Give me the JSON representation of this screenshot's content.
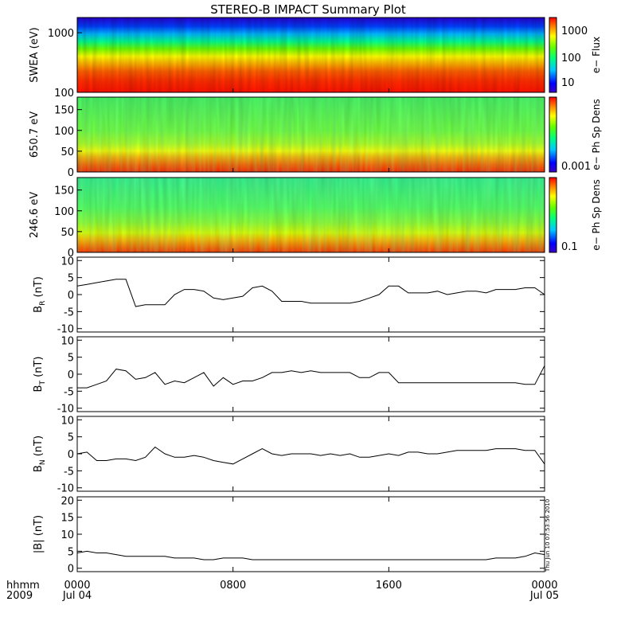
{
  "chart_data": {
    "title": "STEREO-B IMPACT Summary Plot",
    "type": "line",
    "time_axis": {
      "row1_labels": [
        "0000",
        "0800",
        "1600",
        "0000"
      ],
      "row2_labels": [
        "Jul 04",
        "",
        "",
        "Jul 05"
      ],
      "hours": [
        0,
        8,
        16,
        24
      ],
      "left_label_1": "hhmm",
      "left_label_2": "2009"
    },
    "footer_stamp": "Thu Jun 10 07:53:56 2010",
    "spectrograms": [
      {
        "name": "swea",
        "ylabel": "SWEA (eV)",
        "ylim": [
          100,
          1800
        ],
        "yscale": "log",
        "yticks": [
          100,
          1000
        ],
        "ytick_labels": [
          "100",
          "1000"
        ],
        "colorbar_label": "e− Flux",
        "colorbar_ticks": [
          "1000",
          "100",
          "10"
        ]
      },
      {
        "name": "pad650",
        "ylabel": "650.7 eV",
        "ylim": [
          0,
          180
        ],
        "yscale": "linear",
        "yticks": [
          0,
          50,
          100,
          150
        ],
        "ytick_labels": [
          "0",
          "50",
          "100",
          "150"
        ],
        "colorbar_label": "e− Ph Sp Dens",
        "colorbar_ticks": [
          "0.001"
        ]
      },
      {
        "name": "pad246",
        "ylabel": "246.6 eV",
        "ylim": [
          0,
          180
        ],
        "yscale": "linear",
        "yticks": [
          0,
          50,
          100,
          150
        ],
        "ytick_labels": [
          "0",
          "50",
          "100",
          "150"
        ],
        "colorbar_label": "e− Ph Sp Dens",
        "colorbar_ticks": [
          "0.1"
        ]
      }
    ],
    "series": [
      {
        "name": "BR",
        "ylabel_base": "B",
        "ylabel_sub": "R",
        "ylabel_unit": "(nT)",
        "ylim": [
          -11,
          11
        ],
        "yticks": [
          -10,
          -5,
          0,
          5,
          10
        ],
        "x": [
          0,
          0.5,
          1,
          1.5,
          2,
          2.5,
          3,
          3.5,
          4,
          4.5,
          5,
          5.5,
          6,
          6.5,
          7,
          7.5,
          8,
          8.5,
          9,
          9.5,
          10,
          10.5,
          11,
          11.5,
          12,
          12.5,
          13,
          13.5,
          14,
          14.5,
          15,
          15.5,
          16,
          16.5,
          17,
          17.5,
          18,
          18.5,
          19,
          19.5,
          20,
          20.5,
          21,
          21.5,
          22,
          22.5,
          23,
          23.5,
          24
        ],
        "values": [
          2.5,
          3,
          3.5,
          4,
          4.5,
          4.5,
          -3.5,
          -3,
          -3,
          -3,
          0,
          1.5,
          1.5,
          1,
          -1,
          -1.5,
          -1,
          -0.5,
          2,
          2.5,
          1,
          -2,
          -2,
          -2,
          -2.5,
          -2.5,
          -2.5,
          -2.5,
          -2.5,
          -2,
          -1,
          0,
          2.5,
          2.5,
          0.5,
          0.5,
          0.5,
          1,
          0,
          0.5,
          1,
          1,
          0.5,
          1.5,
          1.5,
          1.5,
          2,
          2,
          0
        ]
      },
      {
        "name": "BT",
        "ylabel_base": "B",
        "ylabel_sub": "T",
        "ylabel_unit": "(nT)",
        "ylim": [
          -11,
          11
        ],
        "yticks": [
          -10,
          -5,
          0,
          5,
          10
        ],
        "x": [
          0,
          0.5,
          1,
          1.5,
          2,
          2.5,
          3,
          3.5,
          4,
          4.5,
          5,
          5.5,
          6,
          6.5,
          7,
          7.5,
          8,
          8.5,
          9,
          9.5,
          10,
          10.5,
          11,
          11.5,
          12,
          12.5,
          13,
          13.5,
          14,
          14.5,
          15,
          15.5,
          16,
          16.5,
          17,
          17.5,
          18,
          18.5,
          19,
          19.5,
          20,
          20.5,
          21,
          21.5,
          22,
          22.5,
          23,
          23.5,
          24
        ],
        "values": [
          -4,
          -4,
          -3,
          -2,
          1.5,
          1,
          -1.5,
          -1,
          0.5,
          -3,
          -2,
          -2.5,
          -1,
          0.5,
          -3.5,
          -1,
          -3,
          -2,
          -2,
          -1,
          0.5,
          0.5,
          1,
          0.5,
          1,
          0.5,
          0.5,
          0.5,
          0.5,
          -1,
          -1,
          0.5,
          0.5,
          -2.5,
          -2.5,
          -2.5,
          -2.5,
          -2.5,
          -2.5,
          -2.5,
          -2.5,
          -2.5,
          -2.5,
          -2.5,
          -2.5,
          -2.5,
          -3,
          -3,
          2.5
        ]
      },
      {
        "name": "BN",
        "ylabel_base": "B",
        "ylabel_sub": "N",
        "ylabel_unit": "(nT)",
        "ylim": [
          -11,
          11
        ],
        "yticks": [
          -10,
          -5,
          0,
          5,
          10
        ],
        "x": [
          0,
          0.5,
          1,
          1.5,
          2,
          2.5,
          3,
          3.5,
          4,
          4.5,
          5,
          5.5,
          6,
          6.5,
          7,
          7.5,
          8,
          8.5,
          9,
          9.5,
          10,
          10.5,
          11,
          11.5,
          12,
          12.5,
          13,
          13.5,
          14,
          14.5,
          15,
          15.5,
          16,
          16.5,
          17,
          17.5,
          18,
          18.5,
          19,
          19.5,
          20,
          20.5,
          21,
          21.5,
          22,
          22.5,
          23,
          23.5,
          24
        ],
        "values": [
          0,
          0.5,
          -2,
          -2,
          -1.5,
          -1.5,
          -2,
          -1,
          2,
          0,
          -1,
          -1,
          -0.5,
          -1,
          -2,
          -2.5,
          -3,
          -1.5,
          0,
          1.5,
          0,
          -0.5,
          0,
          0,
          0,
          -0.5,
          0,
          -0.5,
          0,
          -1,
          -1,
          -0.5,
          0,
          -0.5,
          0.5,
          0.5,
          0,
          0,
          0.5,
          1,
          1,
          1,
          1,
          1.5,
          1.5,
          1.5,
          1,
          1,
          -3
        ]
      },
      {
        "name": "Bmag",
        "ylabel_base": "|B|",
        "ylabel_sub": "",
        "ylabel_unit": "(nT)",
        "ylim": [
          -1,
          21
        ],
        "yticks": [
          0,
          5,
          10,
          15,
          20
        ],
        "x": [
          0,
          0.5,
          1,
          1.5,
          2,
          2.5,
          3,
          3.5,
          4,
          4.5,
          5,
          5.5,
          6,
          6.5,
          7,
          7.5,
          8,
          8.5,
          9,
          9.5,
          10,
          10.5,
          11,
          11.5,
          12,
          12.5,
          13,
          13.5,
          14,
          14.5,
          15,
          15.5,
          16,
          16.5,
          17,
          17.5,
          18,
          18.5,
          19,
          19.5,
          20,
          20.5,
          21,
          21.5,
          22,
          22.5,
          23,
          23.5,
          24
        ],
        "values": [
          4.5,
          5,
          4.5,
          4.5,
          4,
          3.5,
          3.5,
          3.5,
          3.5,
          3.5,
          3,
          3,
          3,
          2.5,
          2.5,
          3,
          3,
          3,
          2.5,
          2.5,
          2.5,
          2.5,
          2.5,
          2.5,
          2.5,
          2.5,
          2.5,
          2.5,
          2.5,
          2.5,
          2.5,
          2.5,
          2.5,
          2.5,
          2.5,
          2.5,
          2.5,
          2.5,
          2.5,
          2.5,
          2.5,
          2.5,
          2.5,
          3,
          3,
          3,
          3.5,
          4.5,
          4
        ]
      }
    ]
  }
}
